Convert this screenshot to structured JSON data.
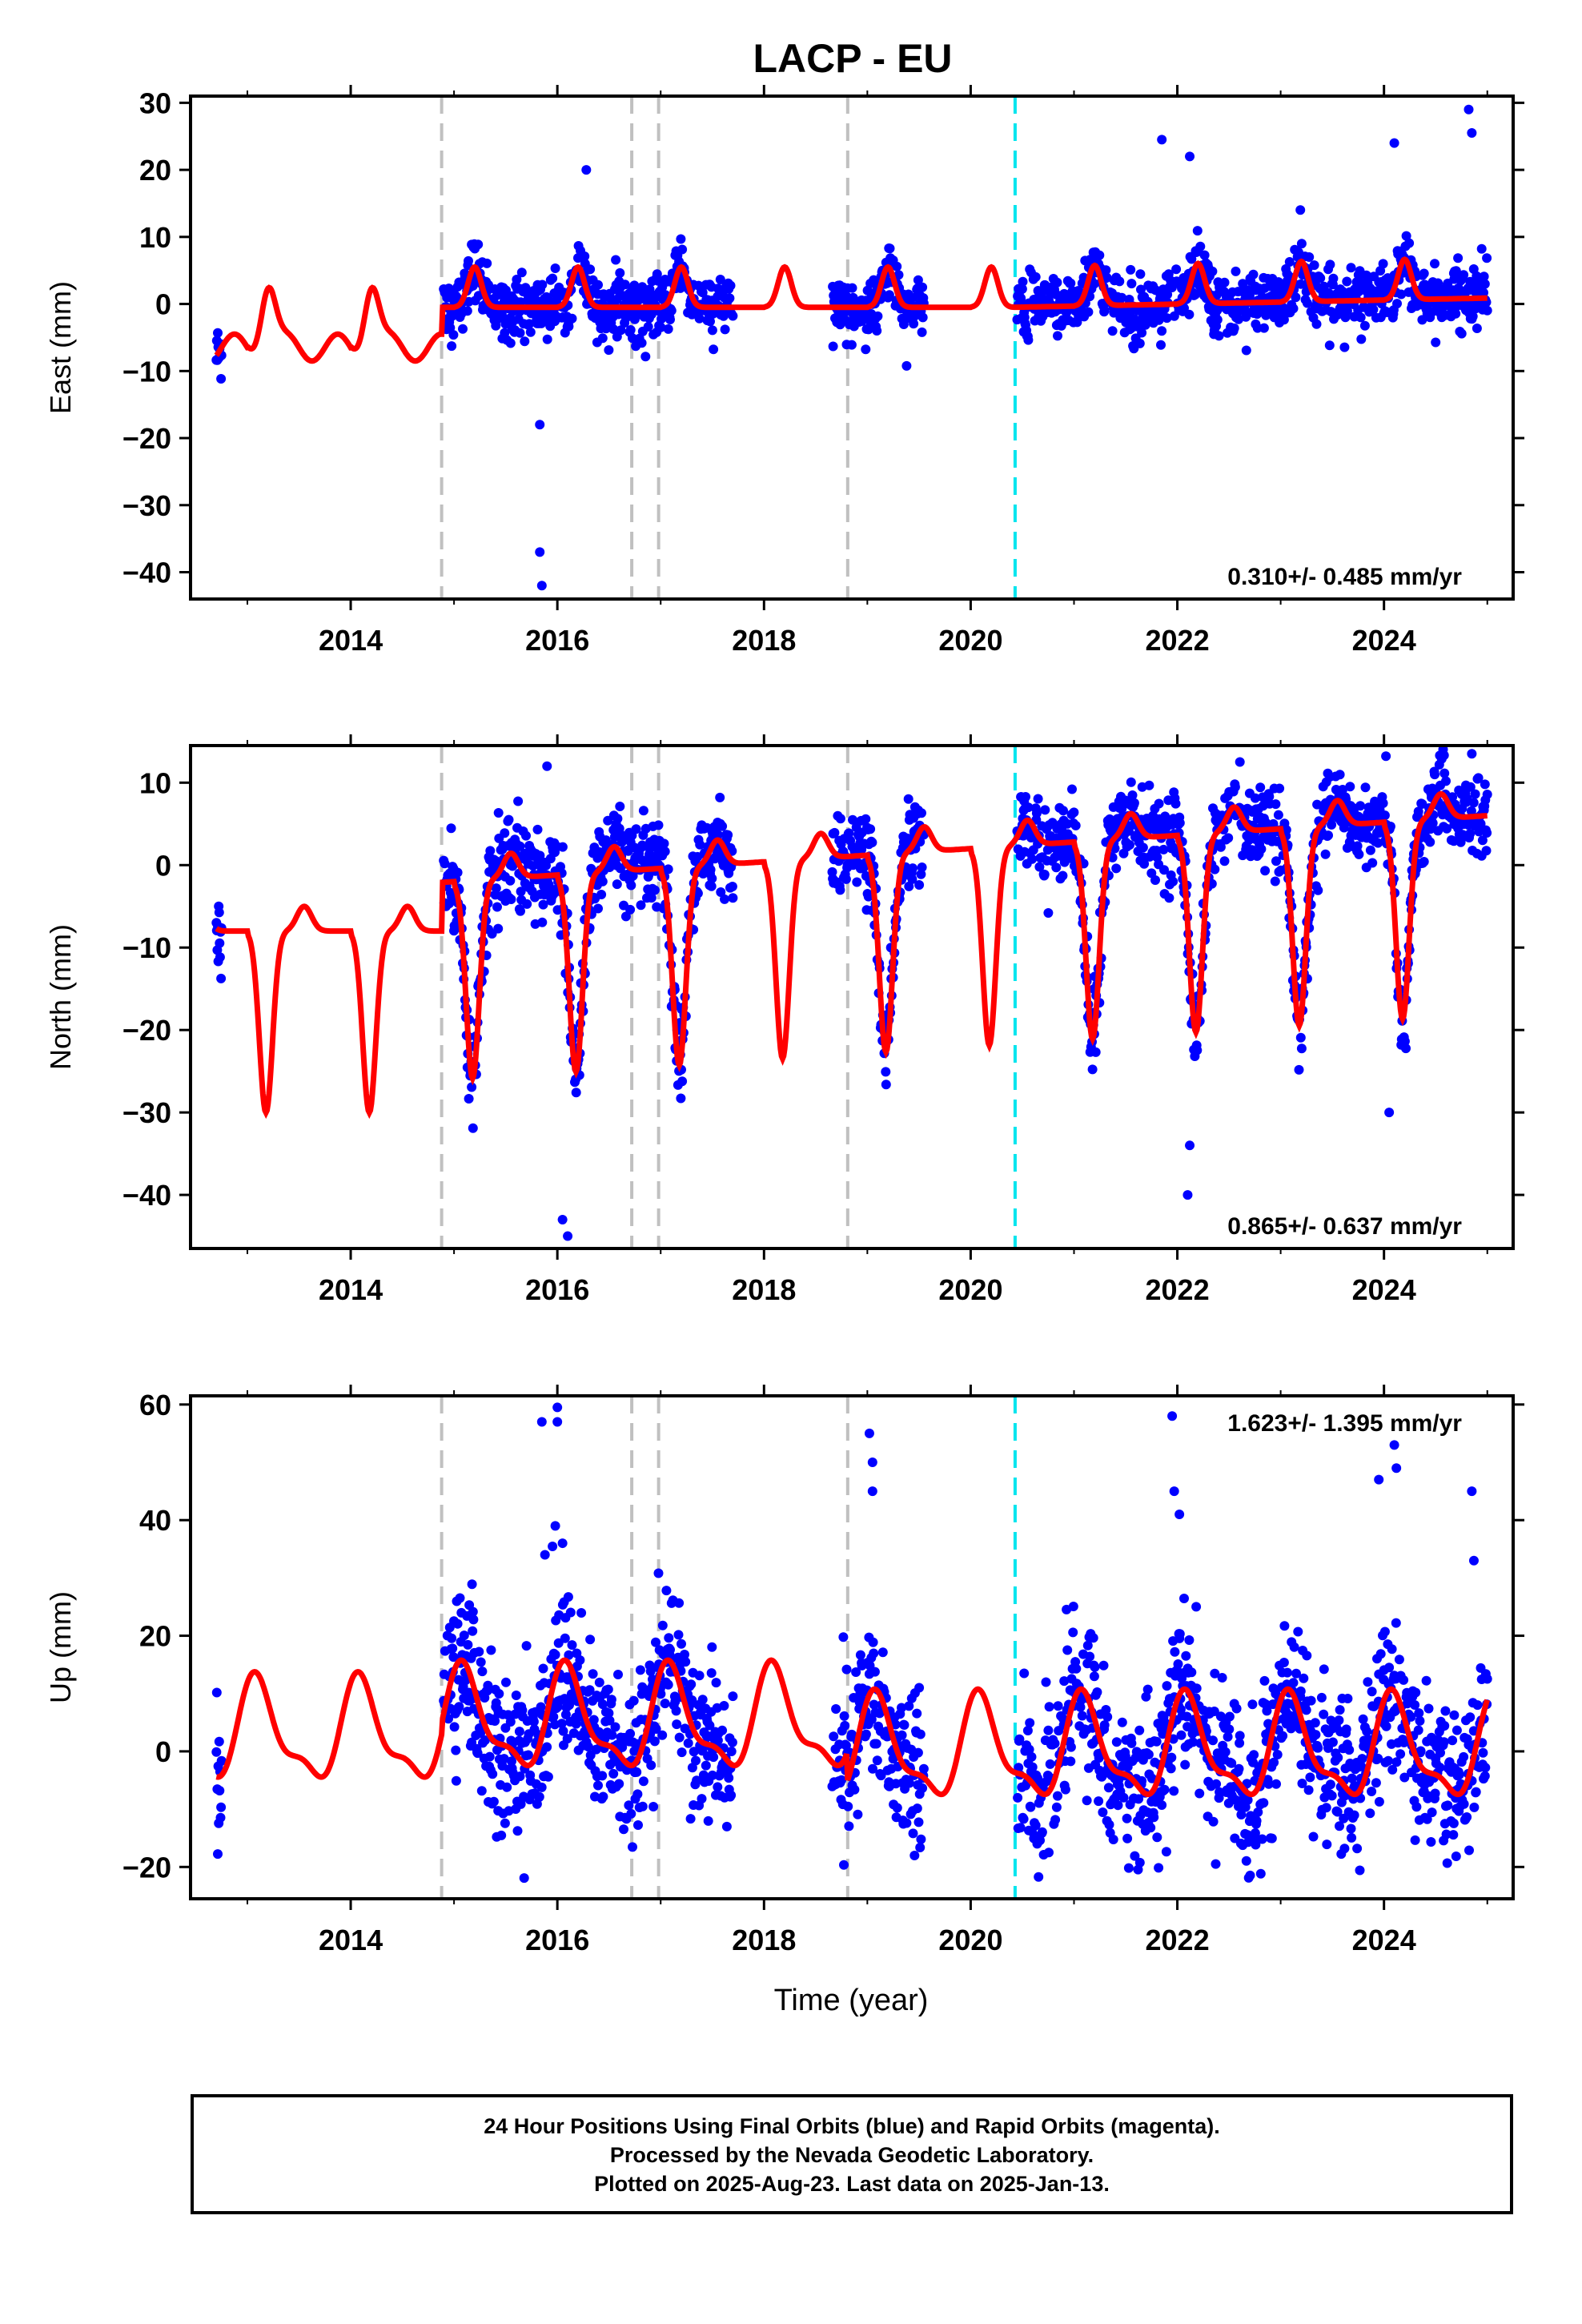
{
  "title": "LACP - EU",
  "xlabel": "Time (year)",
  "caption": [
    "24 Hour Positions Using Final Orbits (blue) and Rapid Orbits (magenta).",
    "Processed by the Nevada Geodetic Laboratory.",
    "Plotted on 2025-Aug-23. Last data on 2025-Jan-13."
  ],
  "colors": {
    "observations": "#0000ff",
    "model": "#ff0000",
    "equipment_change": "#c0c0c0",
    "earthquake": "#00e5ee"
  },
  "events": {
    "gray": [
      2014.88,
      2016.72,
      2016.98,
      2018.81
    ],
    "cyan": [
      2020.43
    ]
  },
  "chart_data": [
    {
      "type": "scatter",
      "ylabel": "East (mm)",
      "xlim": [
        2012.45,
        2025.25
      ],
      "ylim": [
        -44,
        31
      ],
      "xticks": [
        "2014",
        "2016",
        "2018",
        "2020",
        "2022",
        "2024"
      ],
      "yticks": [
        "30",
        "20",
        "10",
        "0",
        "−10",
        "−20",
        "−30",
        "−40"
      ],
      "velocity_text": "0.310+/- 0.485 mm/yr",
      "velocity_pos": "bottom-right",
      "data_segments": [
        [
          2012.7,
          2012.75
        ],
        [
          2014.9,
          2017.7
        ],
        [
          2018.66,
          2019.55
        ],
        [
          2020.45,
          2025.0
        ]
      ],
      "model_seasonal": {
        "amp": 6.0,
        "peak_phase": 0.18,
        "semi_amp": 2.0
      },
      "offsets_east": [
        [
          2012.45,
          -6.0
        ],
        [
          2014.88,
          0.5
        ]
      ],
      "outliers": [
        [
          2015.83,
          -18
        ],
        [
          2015.83,
          -37
        ],
        [
          2015.85,
          -42
        ],
        [
          2016.28,
          20
        ],
        [
          2021.85,
          24.5
        ],
        [
          2022.12,
          22
        ],
        [
          2024.1,
          24
        ],
        [
          2024.82,
          29
        ],
        [
          2024.85,
          25.5
        ]
      ]
    },
    {
      "type": "scatter",
      "ylabel": "North (mm)",
      "xlim": [
        2012.45,
        2025.25
      ],
      "ylim": [
        -46.5,
        14.5
      ],
      "xticks": [
        "2014",
        "2016",
        "2018",
        "2020",
        "2022",
        "2024"
      ],
      "yticks": [
        "10",
        "0",
        "−10",
        "−20",
        "−30",
        "−40"
      ],
      "velocity_text": "0.865+/- 0.637 mm/yr",
      "velocity_pos": "bottom-right",
      "data_segments": [
        [
          2012.7,
          2012.75
        ],
        [
          2014.9,
          2017.7
        ],
        [
          2018.66,
          2019.55
        ],
        [
          2020.45,
          2025.0
        ]
      ],
      "outliers": [
        [
          2015.9,
          12
        ],
        [
          2016.1,
          -45
        ],
        [
          2016.05,
          -43
        ],
        [
          2022.1,
          -40
        ],
        [
          2022.12,
          -34
        ],
        [
          2024.05,
          -30
        ],
        [
          2024.85,
          13.5
        ]
      ]
    },
    {
      "type": "scatter",
      "ylabel": "Up (mm)",
      "xlim": [
        2012.45,
        2025.25
      ],
      "ylim": [
        -25.5,
        61.5
      ],
      "xticks": [
        "2014",
        "2016",
        "2018",
        "2020",
        "2022",
        "2024"
      ],
      "yticks": [
        "60",
        "40",
        "20",
        "0",
        "−20"
      ],
      "velocity_text": "1.623+/- 1.395 mm/yr",
      "velocity_pos": "top-right",
      "data_segments": [
        [
          2012.7,
          2012.75
        ],
        [
          2014.9,
          2017.7
        ],
        [
          2018.66,
          2019.55
        ],
        [
          2020.45,
          2025.0
        ]
      ],
      "outliers": [
        [
          2015.85,
          57
        ],
        [
          2016.0,
          59.5
        ],
        [
          2016.0,
          57
        ],
        [
          2019.02,
          55
        ],
        [
          2019.05,
          50
        ],
        [
          2019.05,
          45
        ],
        [
          2021.95,
          58
        ],
        [
          2021.97,
          45
        ],
        [
          2022.02,
          41
        ],
        [
          2023.95,
          47
        ],
        [
          2024.1,
          53
        ],
        [
          2024.12,
          49
        ],
        [
          2024.85,
          45
        ],
        [
          2024.87,
          33
        ],
        [
          2015.98,
          39
        ],
        [
          2016.05,
          36
        ],
        [
          2015.88,
          34
        ]
      ]
    }
  ]
}
